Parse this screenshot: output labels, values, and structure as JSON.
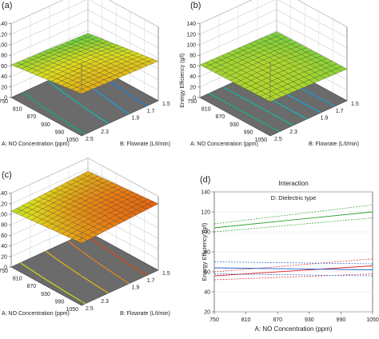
{
  "panels": [
    {
      "letter": "(a)",
      "axis_y": "Energy Efficiency (g/l)",
      "axis_a": "A: NO Concentration (ppm)",
      "axis_b": "B: Flowrate (L/t/min)"
    },
    {
      "letter": "(b)",
      "axis_y": "Energy Efficiency (g/l)",
      "axis_a": "A: NO Concentration (ppm)",
      "axis_b": "B: Flowrate (L/t/min)"
    },
    {
      "letter": "(c)",
      "axis_y": "Energy Efficiency (g/l)",
      "axis_a": "A: NO Concentration (ppm)",
      "axis_b": "B: Flowrate (L/t/min)"
    },
    {
      "letter": "(d)"
    }
  ],
  "colors": {
    "surface_cool": "#1e90d8",
    "surface_mid": "#2ec7b0",
    "surface_warm": "#d6e020",
    "surface_hot": "#d43010",
    "contour_floor": "#707070",
    "green_series": "#2ca02c",
    "red_series": "#d62728",
    "blue_series": "#1f5fcf"
  },
  "chart_data": [
    {
      "type": "surface",
      "panel": "(a)",
      "zlabel": "Energy Efficiency (g/l)",
      "xlabel": "A: NO Concentration (ppm)",
      "ylabel": "B: Flowrate (L/t/min)",
      "z_ticks": [
        "0",
        "20",
        "40",
        "60",
        "80",
        "100",
        "120",
        "140"
      ],
      "a_ticks": [
        "750",
        "810",
        "870",
        "930",
        "990",
        "1050"
      ],
      "b_ticks": [
        "2.5",
        "2.3",
        "1.9",
        "1.7",
        "1.5"
      ],
      "z_range": [
        0,
        140
      ],
      "surface_corners": {
        "a750_b2.5": 80,
        "a750_b1.5": 75,
        "a1050_b2.5": 62,
        "a1050_b1.5": 55
      }
    },
    {
      "type": "surface",
      "panel": "(b)",
      "zlabel": "Energy Efficiency (g/l)",
      "xlabel": "A: NO Concentration (ppm)",
      "ylabel": "B: Flowrate (L/t/min)",
      "z_ticks": [
        "0",
        "20",
        "40",
        "60",
        "80",
        "100",
        "120",
        "140"
      ],
      "a_ticks": [
        "750",
        "810",
        "870",
        "930",
        "990",
        "1050"
      ],
      "b_ticks": [
        "2.5",
        "2.3",
        "1.9",
        "1.7",
        "1.5"
      ],
      "z_range": [
        0,
        140
      ],
      "surface_corners": {
        "a750_b2.5": 65,
        "a750_b1.5": 60,
        "a1050_b2.5": 62,
        "a1050_b1.5": 58
      }
    },
    {
      "type": "surface",
      "panel": "(c)",
      "zlabel": "Energy Efficiency (g/l)",
      "xlabel": "A: NO Concentration (ppm)",
      "ylabel": "B: Flowrate (L/t/min)",
      "z_ticks": [
        "0",
        "20",
        "40",
        "60",
        "80",
        "100",
        "120",
        "140"
      ],
      "a_ticks": [
        "750",
        "810",
        "870",
        "930",
        "990",
        "1050"
      ],
      "b_ticks": [
        "2.5",
        "2.3",
        "1.9",
        "1.7",
        "1.5"
      ],
      "z_range": [
        0,
        140
      ],
      "surface_corners": {
        "a750_b2.5": 118,
        "a750_b1.5": 126,
        "a1050_b2.5": 106,
        "a1050_b1.5": 115
      }
    },
    {
      "type": "line",
      "panel": "(d)",
      "title": "Interaction",
      "subtitle": "D: Dielectric type",
      "xlabel": "A: NO Concentration (ppm)",
      "ylabel": "Energy Efficiency (g/l)",
      "xlim": [
        750,
        1050
      ],
      "ylim": [
        20,
        140
      ],
      "x_ticks": [
        750,
        810,
        870,
        930,
        990,
        1050
      ],
      "y_ticks": [
        20,
        40,
        60,
        80,
        100,
        120,
        140
      ],
      "series": [
        {
          "color": "green",
          "x": [
            750,
            1050
          ],
          "y": [
            104,
            120
          ],
          "ci_low": [
            100,
            114
          ],
          "ci_high": [
            108,
            127
          ]
        },
        {
          "color": "red",
          "x": [
            750,
            1050
          ],
          "y": [
            56,
            66
          ],
          "ci_low": [
            52,
            58
          ],
          "ci_high": [
            60,
            73
          ]
        },
        {
          "color": "blue",
          "x": [
            750,
            1050
          ],
          "y": [
            64,
            62
          ],
          "ci_low": [
            58,
            56
          ],
          "ci_high": [
            70,
            68
          ]
        }
      ]
    }
  ]
}
